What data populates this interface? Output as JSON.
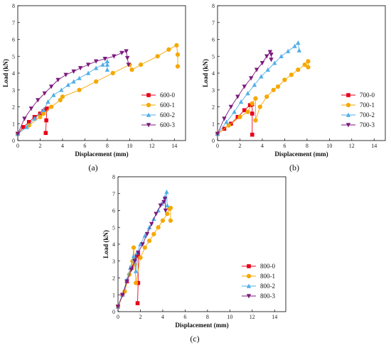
{
  "colors": {
    "axis": "#000000",
    "series": [
      "#e8001a",
      "#f5a800",
      "#52aee8",
      "#7d1a7d"
    ]
  },
  "chart_data": [
    {
      "type": "line",
      "panel_label": "(a)",
      "xlabel": "Displacement (mm)",
      "ylabel": "Load (kN)",
      "xlim": [
        0,
        15
      ],
      "ylim": [
        0,
        8
      ],
      "xticks": [
        0,
        2,
        4,
        6,
        8,
        10,
        12,
        14
      ],
      "yticks": [
        0,
        1,
        2,
        3,
        4,
        5,
        6,
        7,
        8
      ],
      "xtick_labels": [
        "0",
        "2",
        "4",
        "6",
        "8",
        "10",
        "12",
        "14"
      ],
      "ytick_labels": [
        "0",
        "1",
        "2",
        "3",
        "4",
        "5",
        "6",
        "7",
        "8"
      ],
      "grid": false,
      "legend_position": "bottom-right",
      "series": [
        {
          "name": "600-0",
          "marker": "square",
          "x": [
            0,
            0.5,
            1.0,
            1.5,
            2.0,
            2.3,
            2.5,
            2.6,
            2.55,
            2.5
          ],
          "y": [
            0.4,
            0.8,
            1.1,
            1.4,
            1.6,
            1.75,
            1.85,
            1.9,
            1.2,
            0.45
          ]
        },
        {
          "name": "600-1",
          "marker": "circle",
          "x": [
            0,
            1.0,
            2.0,
            2.3,
            3.0,
            3.8,
            4.0,
            5.5,
            7.0,
            8.5,
            10.0,
            10.2,
            11.0,
            12.5,
            13.5,
            14.2,
            14.3,
            14.3
          ],
          "y": [
            0.4,
            0.9,
            1.4,
            1.6,
            2.0,
            2.4,
            2.6,
            3.0,
            3.5,
            4.0,
            4.5,
            4.2,
            4.5,
            5.0,
            5.4,
            5.65,
            5.1,
            4.4
          ]
        },
        {
          "name": "600-2",
          "marker": "triangle-up",
          "x": [
            0,
            0.8,
            1.5,
            2.3,
            2.7,
            3.2,
            3.9,
            4.5,
            5.0,
            5.5,
            6.3,
            7.0,
            7.6,
            8.0,
            8.0,
            8.0
          ],
          "y": [
            0.4,
            0.8,
            1.3,
            1.8,
            2.3,
            2.7,
            3.0,
            3.3,
            3.5,
            3.7,
            4.0,
            4.3,
            4.5,
            4.7,
            4.5,
            4.2
          ]
        },
        {
          "name": "600-3",
          "marker": "triangle-down",
          "x": [
            0,
            0.6,
            1.2,
            1.8,
            2.4,
            3.0,
            3.6,
            4.3,
            5.0,
            5.6,
            6.3,
            7.0,
            7.8,
            8.6,
            9.3,
            9.7,
            9.8,
            9.9
          ],
          "y": [
            0.4,
            1.3,
            1.9,
            2.4,
            2.8,
            3.2,
            3.6,
            3.9,
            4.1,
            4.3,
            4.5,
            4.7,
            4.85,
            5.0,
            5.2,
            5.3,
            4.9,
            4.5
          ]
        }
      ]
    },
    {
      "type": "line",
      "panel_label": "(b)",
      "xlabel": "Displacement (mm)",
      "ylabel": "Load (kN)",
      "xlim": [
        0,
        15
      ],
      "ylim": [
        0,
        8
      ],
      "xticks": [
        0,
        2,
        4,
        6,
        8,
        10,
        12,
        14
      ],
      "yticks": [
        0,
        1,
        2,
        3,
        4,
        5,
        6,
        7,
        8
      ],
      "xtick_labels": [
        "0",
        "2",
        "4",
        "6",
        "8",
        "10",
        "12",
        "14"
      ],
      "ytick_labels": [
        "0",
        "1",
        "2",
        "3",
        "4",
        "5",
        "6",
        "7",
        "8"
      ],
      "grid": false,
      "legend_position": "bottom-right",
      "series": [
        {
          "name": "700-0",
          "marker": "square",
          "x": [
            0,
            0.6,
            1.2,
            1.8,
            2.4,
            2.9,
            3.1,
            3.1,
            3.1
          ],
          "y": [
            0.4,
            0.7,
            1.0,
            1.4,
            1.8,
            2.1,
            2.15,
            1.6,
            0.35
          ]
        },
        {
          "name": "700-1",
          "marker": "circle",
          "x": [
            0,
            1.0,
            2.0,
            2.7,
            3.1,
            3.4,
            3.4,
            3.8,
            4.4,
            5.0,
            5.4,
            6.0,
            6.6,
            7.2,
            7.8,
            8.1,
            8.1
          ],
          "y": [
            0.4,
            0.9,
            1.4,
            1.7,
            2.2,
            2.5,
            1.2,
            2.0,
            2.6,
            3.0,
            3.2,
            3.6,
            3.9,
            4.2,
            4.5,
            4.7,
            4.35
          ]
        },
        {
          "name": "700-2",
          "marker": "triangle-up",
          "x": [
            0,
            0.8,
            1.5,
            2.1,
            2.7,
            3.3,
            3.9,
            4.5,
            5.1,
            5.7,
            6.3,
            6.9,
            7.2,
            7.3
          ],
          "y": [
            0.4,
            1.1,
            1.7,
            2.3,
            2.8,
            3.3,
            3.8,
            4.2,
            4.6,
            5.0,
            5.3,
            5.6,
            5.8,
            5.35
          ]
        },
        {
          "name": "700-3",
          "marker": "triangle-down",
          "x": [
            0,
            0.6,
            1.2,
            1.8,
            2.4,
            3.0,
            3.5,
            4.0,
            4.4,
            4.7,
            4.8,
            4.8
          ],
          "y": [
            0.4,
            1.3,
            2.0,
            2.6,
            3.2,
            3.7,
            4.2,
            4.6,
            5.0,
            5.25,
            5.1,
            4.8
          ]
        }
      ]
    },
    {
      "type": "line",
      "panel_label": "(c)",
      "xlabel": "Displacement (mm)",
      "ylabel": "Load (kN)",
      "xlim": [
        0,
        15
      ],
      "ylim": [
        0,
        8
      ],
      "xticks": [
        0,
        2,
        4,
        6,
        8,
        10,
        12,
        14
      ],
      "yticks": [
        0,
        1,
        2,
        3,
        4,
        5,
        6,
        7,
        8
      ],
      "xtick_labels": [
        "0",
        "2",
        "4",
        "6",
        "8",
        "10",
        "12",
        "14"
      ],
      "ytick_labels": [
        "0",
        "1",
        "2",
        "3",
        "4",
        "5",
        "6",
        "7",
        "8"
      ],
      "grid": false,
      "legend_position": "bottom-right",
      "series": [
        {
          "name": "800-0",
          "marker": "square",
          "x": [
            0,
            0.4,
            0.8,
            1.2,
            1.5,
            1.7,
            1.8,
            1.8,
            1.75
          ],
          "y": [
            0.3,
            1.0,
            1.8,
            2.6,
            3.1,
            3.3,
            3.4,
            1.7,
            0.5
          ]
        },
        {
          "name": "800-1",
          "marker": "circle",
          "x": [
            0,
            0.6,
            1.0,
            1.3,
            1.4,
            1.5,
            1.6,
            2.0,
            2.4,
            2.8,
            3.2,
            3.6,
            4.0,
            4.4,
            4.6,
            4.7,
            4.7
          ],
          "y": [
            0.3,
            1.2,
            2.2,
            3.0,
            3.8,
            2.8,
            1.7,
            3.2,
            3.8,
            4.2,
            4.6,
            5.0,
            5.4,
            5.8,
            6.1,
            6.15,
            5.4
          ]
        },
        {
          "name": "800-2",
          "marker": "triangle-up",
          "x": [
            0,
            0.4,
            0.8,
            1.1,
            1.4,
            1.6,
            1.7,
            2.0,
            2.4,
            2.8,
            3.2,
            3.6,
            3.9,
            4.2,
            4.35,
            4.4
          ],
          "y": [
            0.3,
            1.0,
            1.9,
            2.6,
            3.3,
            2.4,
            3.5,
            4.0,
            4.5,
            5.0,
            5.5,
            6.0,
            6.4,
            6.8,
            7.1,
            6.3
          ]
        },
        {
          "name": "800-3",
          "marker": "triangle-down",
          "x": [
            0,
            0.4,
            0.8,
            1.2,
            1.5,
            1.8,
            2.2,
            2.6,
            3.0,
            3.4,
            3.8,
            4.1,
            4.2,
            4.25
          ],
          "y": [
            0.3,
            1.0,
            1.8,
            2.5,
            3.0,
            3.5,
            4.0,
            4.6,
            5.2,
            5.8,
            6.3,
            6.5,
            6.7,
            6.0
          ]
        }
      ]
    }
  ]
}
